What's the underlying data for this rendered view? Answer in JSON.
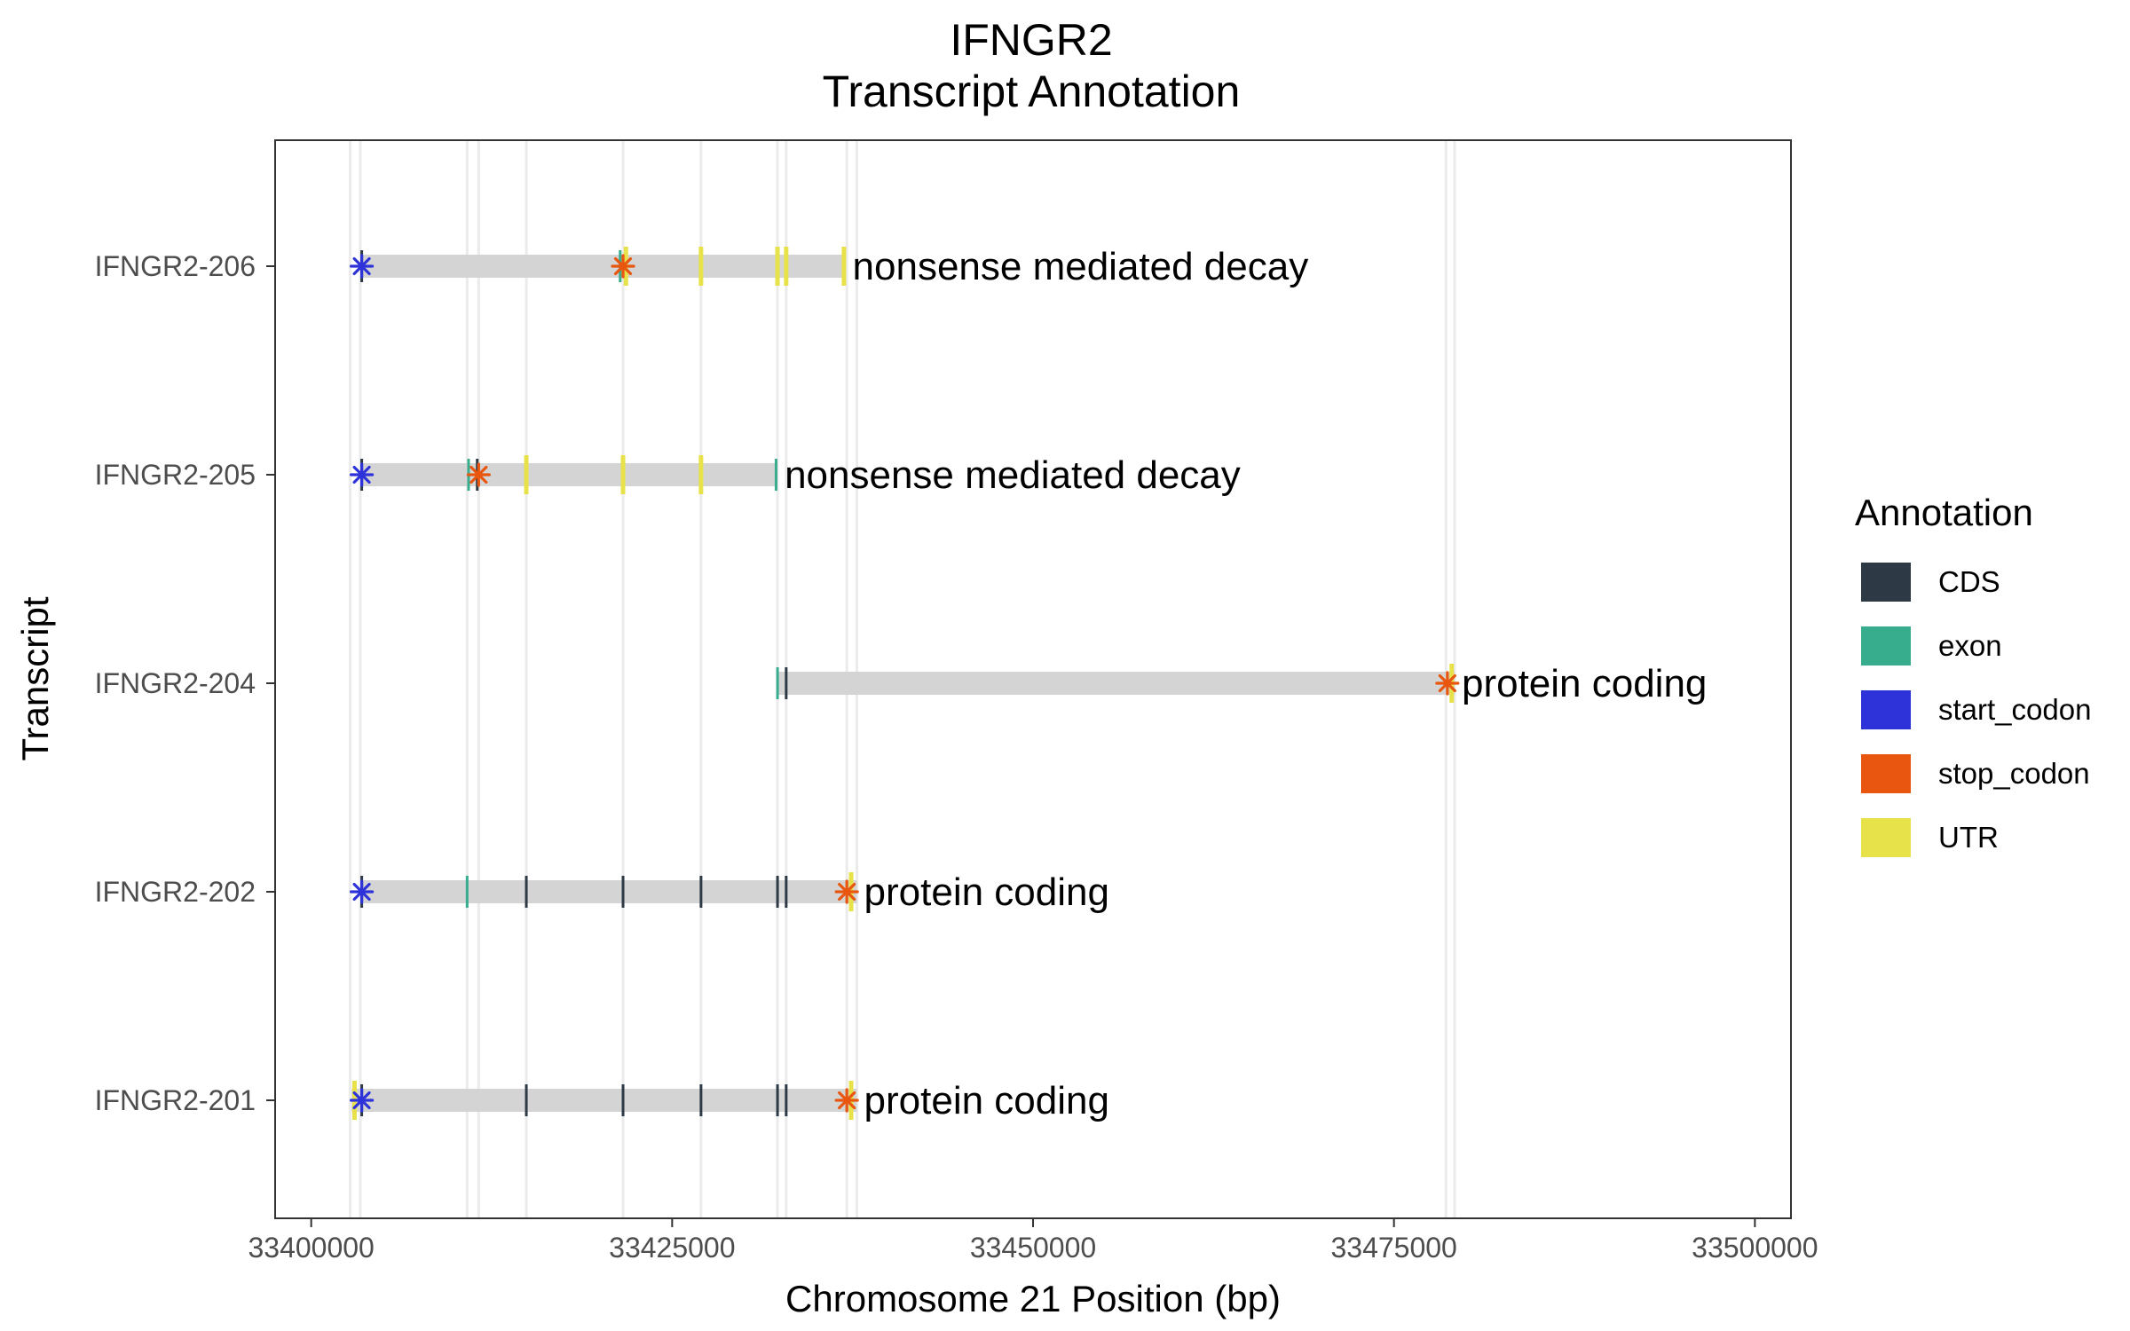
{
  "chart_data": {
    "type": "gene-structure",
    "title_line1": "IFNGR2",
    "title_line2": "Transcript Annotation",
    "xlabel": "Chromosome 21 Position (bp)",
    "ylabel": "Transcript",
    "xlim": [
      33397500,
      33502500
    ],
    "x_ticks": [
      33400000,
      33425000,
      33450000,
      33475000,
      33500000
    ],
    "x_tick_labels": [
      "33400000",
      "33425000",
      "33450000",
      "33475000",
      "33500000"
    ],
    "grid": false,
    "guide_lines": [
      33402700,
      33403400,
      33410800,
      33411600,
      33414900,
      33421600,
      33427000,
      33432300,
      33432900,
      33437100,
      33437800,
      33478600,
      33479200
    ],
    "legend": {
      "title": "Annotation",
      "position": "right",
      "items": [
        {
          "label": "CDS",
          "color": "#2d3a45"
        },
        {
          "label": "exon",
          "color": "#37ad8e"
        },
        {
          "label": "start_codon",
          "color": "#2e33d9"
        },
        {
          "label": "stop_codon",
          "color": "#e8560f"
        },
        {
          "label": "UTR",
          "color": "#e8e24a"
        }
      ]
    },
    "transcripts": [
      {
        "name": "IFNGR2-206",
        "biotype": "nonsense mediated decay",
        "start": 33403400,
        "end": 33437000,
        "features": [
          {
            "type": "CDS",
            "pos": 33403500
          },
          {
            "type": "exon",
            "pos": 33421400
          },
          {
            "type": "UTR",
            "pos": 33421800
          },
          {
            "type": "UTR",
            "pos": 33427000
          },
          {
            "type": "UTR",
            "pos": 33432300
          },
          {
            "type": "UTR",
            "pos": 33432900
          },
          {
            "type": "UTR",
            "pos": 33436900
          }
        ],
        "start_codon": 33403500,
        "stop_codon": 33421600
      },
      {
        "name": "IFNGR2-205",
        "biotype": "nonsense mediated decay",
        "start": 33403400,
        "end": 33432300,
        "features": [
          {
            "type": "CDS",
            "pos": 33403500
          },
          {
            "type": "exon",
            "pos": 33410900
          },
          {
            "type": "CDS",
            "pos": 33411500
          },
          {
            "type": "UTR",
            "pos": 33414900
          },
          {
            "type": "UTR",
            "pos": 33421600
          },
          {
            "type": "UTR",
            "pos": 33427000
          },
          {
            "type": "exon",
            "pos": 33432200
          }
        ],
        "start_codon": 33403500,
        "stop_codon": 33411600
      },
      {
        "name": "IFNGR2-204",
        "biotype": "protein coding",
        "start": 33432300,
        "end": 33479200,
        "features": [
          {
            "type": "exon",
            "pos": 33432300
          },
          {
            "type": "CDS",
            "pos": 33432900
          },
          {
            "type": "UTR",
            "pos": 33479000
          }
        ],
        "start_codon": null,
        "stop_codon": 33478700
      },
      {
        "name": "IFNGR2-202",
        "biotype": "protein coding",
        "start": 33403400,
        "end": 33437800,
        "features": [
          {
            "type": "CDS",
            "pos": 33403500
          },
          {
            "type": "exon",
            "pos": 33410800
          },
          {
            "type": "CDS",
            "pos": 33414900
          },
          {
            "type": "CDS",
            "pos": 33421600
          },
          {
            "type": "CDS",
            "pos": 33427000
          },
          {
            "type": "CDS",
            "pos": 33432300
          },
          {
            "type": "CDS",
            "pos": 33432900
          },
          {
            "type": "UTR",
            "pos": 33437400
          }
        ],
        "start_codon": 33403500,
        "stop_codon": 33437100
      },
      {
        "name": "IFNGR2-201",
        "biotype": "protein coding",
        "start": 33402800,
        "end": 33437800,
        "features": [
          {
            "type": "UTR",
            "pos": 33403000
          },
          {
            "type": "CDS",
            "pos": 33403500
          },
          {
            "type": "CDS",
            "pos": 33414900
          },
          {
            "type": "CDS",
            "pos": 33421600
          },
          {
            "type": "CDS",
            "pos": 33427000
          },
          {
            "type": "CDS",
            "pos": 33432300
          },
          {
            "type": "CDS",
            "pos": 33432900
          },
          {
            "type": "UTR",
            "pos": 33437400
          }
        ],
        "start_codon": 33403500,
        "stop_codon": 33437100
      }
    ]
  }
}
